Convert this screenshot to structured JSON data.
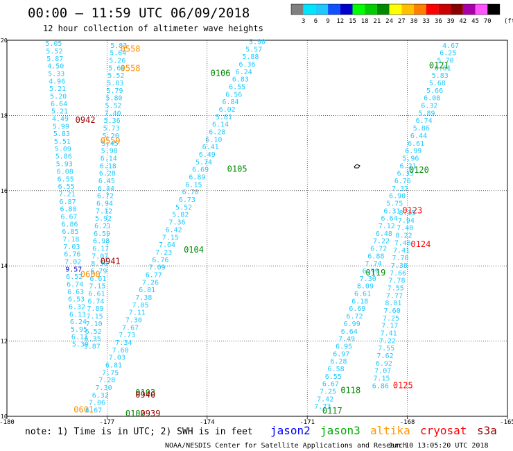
{
  "header": {
    "title": "00:00 – 11:59 UTC 06/09/2018",
    "subtitle": "12 hour collection of altimeter wave heights"
  },
  "legend": {
    "colors": [
      "#808080",
      "#00e5ff",
      "#1ec8ff",
      "#1050ff",
      "#0000cc",
      "#00ff00",
      "#00cc00",
      "#008800",
      "#ffff00",
      "#ffc000",
      "#ff8000",
      "#ff0000",
      "#cc0000",
      "#880000",
      "#aa00aa",
      "#ff55ff",
      "#000000"
    ],
    "ticks": [
      "3",
      "6",
      "9",
      "12",
      "15",
      "18",
      "21",
      "24",
      "27",
      "30",
      "33",
      "36",
      "39",
      "42",
      "45",
      "70"
    ],
    "unit": "(ft)"
  },
  "axes": {
    "x_ticks": [
      "-180",
      "-177",
      "-174",
      "-171",
      "-168",
      "-165"
    ],
    "y_ticks": [
      "20",
      "18",
      "16",
      "14",
      "12",
      "10"
    ],
    "x_range": [
      -180,
      -165
    ],
    "y_range": [
      10,
      20
    ],
    "grid": true
  },
  "colors": {
    "swh_low": "#1ec8ff",
    "swh_mid_dark": "#0000cc",
    "swh_high": "#ff8000",
    "track_green": "#00aa00",
    "track_red": "#ff0000",
    "track_orange": "#ff8c00",
    "track_darkred": "#990000"
  },
  "tracks": [
    {
      "label": "0106",
      "lon": -173.6,
      "lat": 19.05,
      "color": "#008800"
    },
    {
      "label": "0105",
      "lon": -173.1,
      "lat": 16.5,
      "color": "#008800"
    },
    {
      "label": "0104",
      "lon": -174.4,
      "lat": 14.35,
      "color": "#008800"
    },
    {
      "label": "0103",
      "lon": -175.85,
      "lat": 10.55,
      "color": "#008800"
    },
    {
      "label": "0102",
      "lon": -176.15,
      "lat": 10.0,
      "color": "#008800"
    },
    {
      "label": "0121",
      "lon": -167.05,
      "lat": 19.25,
      "color": "#008800"
    },
    {
      "label": "0120",
      "lon": -167.65,
      "lat": 16.48,
      "color": "#008800"
    },
    {
      "label": "0119",
      "lon": -168.95,
      "lat": 13.75,
      "color": "#008800"
    },
    {
      "label": "0118",
      "lon": -169.7,
      "lat": 10.62,
      "color": "#008800"
    },
    {
      "label": "0117",
      "lon": -170.25,
      "lat": 10.07,
      "color": "#008800"
    },
    {
      "label": "0123",
      "lon": -167.85,
      "lat": 15.4,
      "color": "#ff0000"
    },
    {
      "label": "0124",
      "lon": -167.6,
      "lat": 14.5,
      "color": "#ff0000"
    },
    {
      "label": "0125",
      "lon": -168.13,
      "lat": 10.75,
      "color": "#ff0000"
    },
    {
      "label": "0558",
      "lon": -176.3,
      "lat": 19.7,
      "color": "#ff8c00"
    },
    {
      "label": "0558",
      "lon": -176.3,
      "lat": 19.18,
      "color": "#ff8c00"
    },
    {
      "label": "0559",
      "lon": -176.9,
      "lat": 17.25,
      "color": "#ff8c00"
    },
    {
      "label": "0600",
      "lon": -177.5,
      "lat": 13.7,
      "color": "#ff8c00"
    },
    {
      "label": "0601",
      "lon": -177.7,
      "lat": 10.1,
      "color": "#ff8c00"
    },
    {
      "label": "0942",
      "lon": -177.65,
      "lat": 17.8,
      "color": "#990000"
    },
    {
      "label": "0941",
      "lon": -176.9,
      "lat": 14.05,
      "color": "#990000"
    },
    {
      "label": "0940",
      "lon": -175.85,
      "lat": 10.5,
      "color": "#990000"
    },
    {
      "label": "0939",
      "lon": -175.7,
      "lat": 10.0,
      "color": "#990000"
    }
  ],
  "swh_columns": [
    {
      "lon0": -178.6,
      "lat0": 19.85,
      "dlon": 0.02,
      "dlat": -0.2,
      "values": [
        "5.05",
        "5.52",
        "5.87",
        "4.50",
        "5.33",
        "4.96",
        "5.21",
        "5.20",
        "6.64",
        "5.21",
        "4.49",
        "5.99",
        "5.83",
        "5.51",
        "5.09",
        "5.86",
        "5.93",
        "6.08",
        "6.55",
        "6.55",
        "7.21",
        "6.87",
        "6.80",
        "6.67",
        "6.86",
        "6.85",
        "7.18",
        "7.03",
        "6.76",
        "7.02",
        "9.57",
        "6.52",
        "6.74",
        "6.63",
        "6.53",
        "6.32",
        "6.13",
        "6.24",
        "5.95",
        "6.11",
        "5.39"
      ],
      "dark_index": 30
    },
    {
      "lon0": -176.65,
      "lat0": 19.8,
      "dlon": -0.02,
      "dlat": -0.2,
      "values": [
        "5.83",
        "5.64",
        "5.26",
        "5.69",
        "5.52",
        "5.83",
        "5.79",
        "5.80",
        "5.52",
        "7.40",
        "5.36",
        "5.73",
        "5.20",
        "5.45",
        "5.98",
        "6.14",
        "6.18",
        "6.28",
        "6.45",
        "6.44",
        "6.72",
        "6.94",
        "7.12",
        "5.92",
        "6.21",
        "6.59",
        "6.98",
        "6.17",
        "7.07",
        "8.30",
        "6.79",
        "6.61",
        "7.15",
        "6.61",
        "6.74",
        "7.89",
        "7.15",
        "7.10",
        "6.52",
        "6.35",
        "5.87"
      ],
      "dark_index": -1
    },
    {
      "lon0": -172.5,
      "lat0": 19.9,
      "dlon": -0.1,
      "dlat": -0.2,
      "values": [
        "5.90",
        "5.57",
        "5.88",
        "6.36",
        "6.24",
        "6.83",
        "6.55",
        "6.56",
        "6.84",
        "6.02",
        "5.81",
        "6.14",
        "6.28",
        "6.10",
        "6.41",
        "6.49",
        "5.74",
        "6.69",
        "6.89",
        "6.15",
        "6.70",
        "6.73",
        "5.52",
        "5.82",
        "7.36",
        "6.42",
        "7.15",
        "7.64",
        "7.23",
        "6.76",
        "7.09",
        "6.77",
        "7.26",
        "6.81",
        "7.38",
        "7.05",
        "7.11",
        "7.30",
        "7.67",
        "7.73",
        "7.34",
        "7.60",
        "7.03",
        "6.81",
        "7.75",
        "7.28",
        "7.30",
        "6.32",
        "7.06",
        "6.67"
      ],
      "dark_index": -1
    },
    {
      "lon0": -166.7,
      "lat0": 19.8,
      "dlon": -0.08,
      "dlat": -0.2,
      "values": [
        "4.67",
        "6.25",
        "5.70",
        "6.61",
        "5.83",
        "5.68",
        "5.66",
        "6.08",
        "6.32",
        "5.89",
        "6.74",
        "5.86",
        "6.44",
        "6.61",
        "6.99",
        "5.96",
        "6.21",
        "6.33",
        "6.76",
        "7.37",
        "6.90",
        "5.75",
        "6.31",
        "6.64",
        "7.12",
        "6.48",
        "7.22",
        "6.72",
        "6.88",
        "7.74",
        "6.99",
        "7.30",
        "8.09",
        "6.61",
        "6.18",
        "6.69",
        "6.72",
        "6.99",
        "6.64",
        "7.49",
        "6.95",
        "6.97",
        "6.28",
        "6.58",
        "6.55",
        "6.67",
        "7.25",
        "7.42",
        "7.73"
      ],
      "dark_index": -1
    },
    {
      "lon0": -168.0,
      "lat0": 15.35,
      "dlon": -0.035,
      "dlat": -0.2,
      "values": [
        "8.15",
        "7.94",
        "7.40",
        "8.22",
        "7.46",
        "7.41",
        "7.78",
        "7.38",
        "7.66",
        "7.78",
        "7.55",
        "7.77",
        "8.01",
        "7.60",
        "7.25",
        "7.17",
        "7.41",
        "7.22",
        "7.55",
        "7.62",
        "6.92",
        "7.07",
        "7.15",
        "6.86"
      ],
      "dark_index": -1
    }
  ],
  "footer": {
    "note": "note: 1) Time is in UTC; 2) SWH is in feet",
    "missions": [
      {
        "name": "jason2",
        "color": "#0000ff"
      },
      {
        "name": "jason3",
        "color": "#00aa00"
      },
      {
        "name": "altika",
        "color": "#ff9900"
      },
      {
        "name": "cryosat",
        "color": "#ff0000"
      },
      {
        "name": "s3a",
        "color": "#990000"
      }
    ],
    "credit": "NOAA/NESDIS Center for Satellite Applications and Research",
    "timestamp": "Jun 10 13:05:20 UTC 2018"
  }
}
